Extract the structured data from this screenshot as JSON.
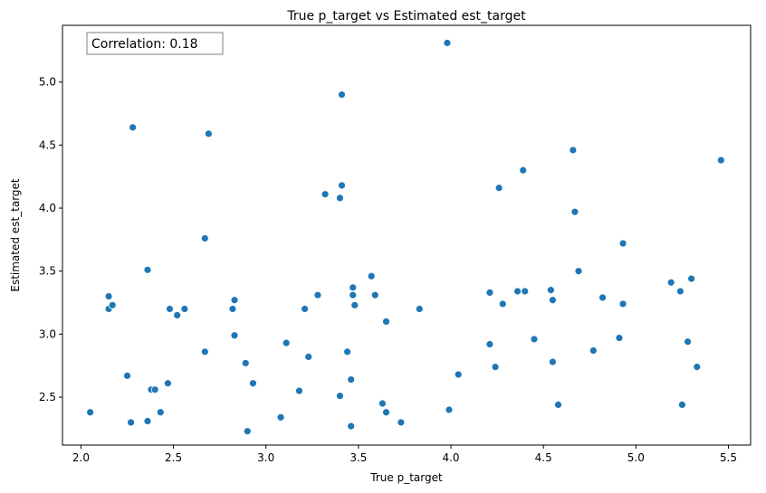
{
  "chart_data": {
    "type": "scatter",
    "title": "True p_target vs Estimated est_target",
    "xlabel": "True p_target",
    "ylabel": "Estimated est_target",
    "xlim": [
      1.9,
      5.62
    ],
    "ylim": [
      2.12,
      5.45
    ],
    "xticks": [
      2.0,
      2.5,
      3.0,
      3.5,
      4.0,
      4.5,
      5.0,
      5.5
    ],
    "yticks": [
      2.5,
      3.0,
      3.5,
      4.0,
      4.5,
      5.0
    ],
    "xtick_labels": [
      "2.0",
      "2.5",
      "3.0",
      "3.5",
      "4.0",
      "4.5",
      "5.0",
      "5.5"
    ],
    "ytick_labels": [
      "2.5",
      "3.0",
      "3.5",
      "4.0",
      "4.5",
      "5.0"
    ],
    "grid": false,
    "annotation": "Correlation: 0.18",
    "marker_color": "#1f77b4",
    "points": [
      [
        2.05,
        2.38
      ],
      [
        2.15,
        3.3
      ],
      [
        2.15,
        3.2
      ],
      [
        2.17,
        3.23
      ],
      [
        2.25,
        2.67
      ],
      [
        2.27,
        2.3
      ],
      [
        2.28,
        4.64
      ],
      [
        2.36,
        3.51
      ],
      [
        2.36,
        2.31
      ],
      [
        2.38,
        2.56
      ],
      [
        2.4,
        2.56
      ],
      [
        2.43,
        2.38
      ],
      [
        2.47,
        2.61
      ],
      [
        2.48,
        3.2
      ],
      [
        2.52,
        3.15
      ],
      [
        2.56,
        3.2
      ],
      [
        2.67,
        3.76
      ],
      [
        2.67,
        2.86
      ],
      [
        2.69,
        4.59
      ],
      [
        2.82,
        3.2
      ],
      [
        2.83,
        3.27
      ],
      [
        2.83,
        2.99
      ],
      [
        2.89,
        2.77
      ],
      [
        2.9,
        2.23
      ],
      [
        2.93,
        2.61
      ],
      [
        3.08,
        2.34
      ],
      [
        3.11,
        2.93
      ],
      [
        3.18,
        2.55
      ],
      [
        3.21,
        3.2
      ],
      [
        3.23,
        2.82
      ],
      [
        3.28,
        3.31
      ],
      [
        3.32,
        4.11
      ],
      [
        3.4,
        4.08
      ],
      [
        3.4,
        2.51
      ],
      [
        3.41,
        4.9
      ],
      [
        3.41,
        4.18
      ],
      [
        3.44,
        2.86
      ],
      [
        3.46,
        2.64
      ],
      [
        3.46,
        2.27
      ],
      [
        3.47,
        3.37
      ],
      [
        3.47,
        3.31
      ],
      [
        3.48,
        3.23
      ],
      [
        3.57,
        3.46
      ],
      [
        3.59,
        3.31
      ],
      [
        3.63,
        2.45
      ],
      [
        3.65,
        3.1
      ],
      [
        3.65,
        2.38
      ],
      [
        3.73,
        2.3
      ],
      [
        3.83,
        3.2
      ],
      [
        3.98,
        5.31
      ],
      [
        3.99,
        2.4
      ],
      [
        4.04,
        2.68
      ],
      [
        4.21,
        3.33
      ],
      [
        4.21,
        2.92
      ],
      [
        4.24,
        2.74
      ],
      [
        4.26,
        4.16
      ],
      [
        4.28,
        3.24
      ],
      [
        4.36,
        3.34
      ],
      [
        4.39,
        4.3
      ],
      [
        4.4,
        3.34
      ],
      [
        4.45,
        2.96
      ],
      [
        4.54,
        3.35
      ],
      [
        4.55,
        3.27
      ],
      [
        4.55,
        2.78
      ],
      [
        4.58,
        2.44
      ],
      [
        4.66,
        4.46
      ],
      [
        4.67,
        3.97
      ],
      [
        4.69,
        3.5
      ],
      [
        4.77,
        2.87
      ],
      [
        4.82,
        3.29
      ],
      [
        4.91,
        2.97
      ],
      [
        4.93,
        3.72
      ],
      [
        4.93,
        3.24
      ],
      [
        5.19,
        3.41
      ],
      [
        5.24,
        3.34
      ],
      [
        5.25,
        2.44
      ],
      [
        5.28,
        2.94
      ],
      [
        5.3,
        3.44
      ],
      [
        5.33,
        2.74
      ],
      [
        5.46,
        4.38
      ]
    ]
  }
}
